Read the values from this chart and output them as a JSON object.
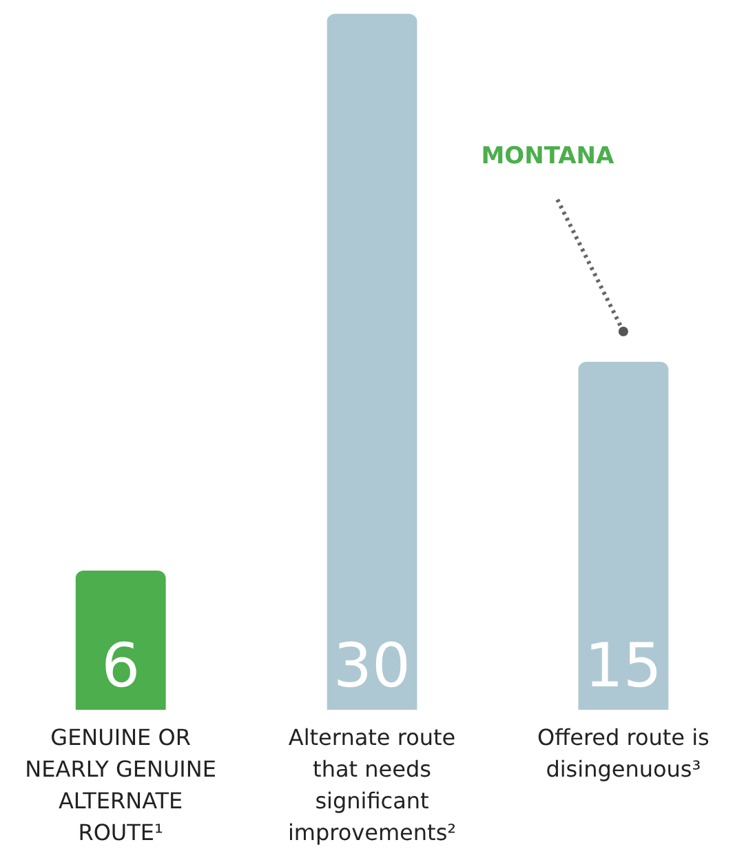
{
  "chart_data": {
    "type": "bar",
    "categories": [
      "GENUINE OR NEARLY GENUINE ALTERNATE ROUTE¹",
      "Alternate route that needs significant improvements²",
      "Offered route is disingenuous³"
    ],
    "values": [
      6,
      30,
      15
    ],
    "colors": [
      "#4cae4c",
      "#aec8d3",
      "#aec8d3"
    ],
    "data_labels": true,
    "annotations": [
      "MONTANA"
    ]
  }
}
